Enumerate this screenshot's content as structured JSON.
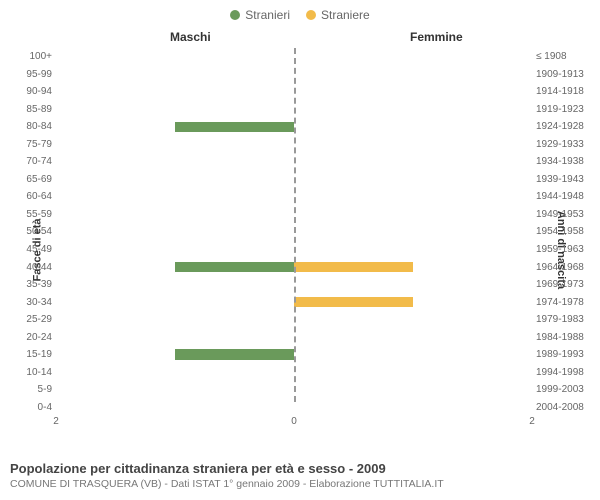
{
  "legend": {
    "male": {
      "label": "Stranieri",
      "color": "#6a9a5b"
    },
    "female": {
      "label": "Straniere",
      "color": "#f2bb4a"
    }
  },
  "headers": {
    "left": "Maschi",
    "right": "Femmine"
  },
  "y_titles": {
    "left": "Fasce di età",
    "right": "Anni di nascita"
  },
  "x_axis": {
    "max": 2,
    "ticks": [
      2,
      0,
      2
    ]
  },
  "rows": [
    {
      "age": "100+",
      "birth": "≤ 1908",
      "m": 0,
      "f": 0
    },
    {
      "age": "95-99",
      "birth": "1909-1913",
      "m": 0,
      "f": 0
    },
    {
      "age": "90-94",
      "birth": "1914-1918",
      "m": 0,
      "f": 0
    },
    {
      "age": "85-89",
      "birth": "1919-1923",
      "m": 0,
      "f": 0
    },
    {
      "age": "80-84",
      "birth": "1924-1928",
      "m": 1,
      "f": 0
    },
    {
      "age": "75-79",
      "birth": "1929-1933",
      "m": 0,
      "f": 0
    },
    {
      "age": "70-74",
      "birth": "1934-1938",
      "m": 0,
      "f": 0
    },
    {
      "age": "65-69",
      "birth": "1939-1943",
      "m": 0,
      "f": 0
    },
    {
      "age": "60-64",
      "birth": "1944-1948",
      "m": 0,
      "f": 0
    },
    {
      "age": "55-59",
      "birth": "1949-1953",
      "m": 0,
      "f": 0
    },
    {
      "age": "50-54",
      "birth": "1954-1958",
      "m": 0,
      "f": 0
    },
    {
      "age": "45-49",
      "birth": "1959-1963",
      "m": 0,
      "f": 0
    },
    {
      "age": "40-44",
      "birth": "1964-1968",
      "m": 1,
      "f": 1
    },
    {
      "age": "35-39",
      "birth": "1969-1973",
      "m": 0,
      "f": 0
    },
    {
      "age": "30-34",
      "birth": "1974-1978",
      "m": 0,
      "f": 1
    },
    {
      "age": "25-29",
      "birth": "1979-1983",
      "m": 0,
      "f": 0
    },
    {
      "age": "20-24",
      "birth": "1984-1988",
      "m": 0,
      "f": 0
    },
    {
      "age": "15-19",
      "birth": "1989-1993",
      "m": 1,
      "f": 0
    },
    {
      "age": "10-14",
      "birth": "1994-1998",
      "m": 0,
      "f": 0
    },
    {
      "age": "5-9",
      "birth": "1999-2003",
      "m": 0,
      "f": 0
    },
    {
      "age": "0-4",
      "birth": "2004-2008",
      "m": 0,
      "f": 0
    }
  ],
  "colors": {
    "m_bar": "#6a9a5b",
    "f_bar": "#f2bb4a",
    "axis": "#999999"
  },
  "footer": {
    "title": "Popolazione per cittadinanza straniera per età e sesso - 2009",
    "subtitle": "COMUNE DI TRASQUERA (VB) - Dati ISTAT 1° gennaio 2009 - Elaborazione TUTTITALIA.IT"
  }
}
